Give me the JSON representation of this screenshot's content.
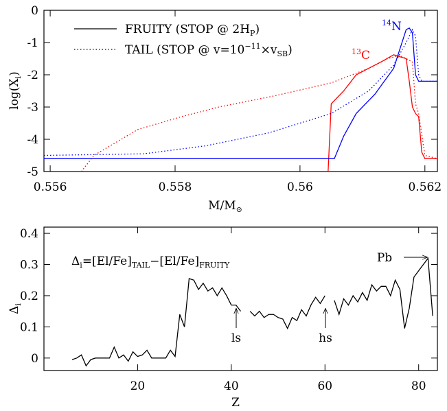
{
  "chart_data": [
    {
      "type": "line",
      "xlabel": [
        "M/M",
        "⊙"
      ],
      "ylabel": [
        "log(X",
        "i",
        ")"
      ],
      "xlim": [
        0.5559,
        0.5622
      ],
      "xticks": [
        0.556,
        0.558,
        0.56,
        0.562
      ],
      "ylim": [
        -5,
        0
      ],
      "yticks": [
        -5,
        -4,
        -3,
        -2,
        -1,
        0
      ],
      "legend": [
        {
          "text": [
            "FRUITY (STOP @ 2H",
            "P",
            ")"
          ],
          "style": "solid"
        },
        {
          "text": [
            "TAIL (STOP @ v=10",
            "−11",
            "×v",
            "SB",
            ")"
          ],
          "style": "dotted"
        }
      ],
      "labels": [
        {
          "text": [
            "13",
            "C"
          ],
          "color": "#ff0000"
        },
        {
          "text": [
            "14",
            "N"
          ],
          "color": "#0000ff"
        }
      ],
      "series": [
        {
          "color": "#ff0000",
          "style": "dotted",
          "x": [
            0.5565,
            0.5567,
            0.5574,
            0.5581,
            0.5587,
            0.5596,
            0.5605,
            0.5611,
            0.5614,
            0.5616,
            0.5618,
            0.56185,
            0.5619,
            0.562,
            0.5622
          ],
          "values": [
            -5,
            -4.5,
            -3.7,
            -3.3,
            -3.0,
            -2.65,
            -2.25,
            -1.8,
            -1.5,
            -1.4,
            -1.6,
            -2.9,
            -3.2,
            -4.5,
            -4.6
          ]
        },
        {
          "color": "#ff0000",
          "style": "solid",
          "x": [
            0.56045,
            0.5605,
            0.5607,
            0.5609,
            0.5613,
            0.5615,
            0.5617,
            0.56175,
            0.5618,
            0.56185,
            0.5619,
            0.56195,
            0.562,
            0.5622
          ],
          "values": [
            -5,
            -2.9,
            -2.5,
            -2.0,
            -1.6,
            -1.38,
            -1.5,
            -2.2,
            -3.0,
            -3.2,
            -3.3,
            -4.4,
            -4.6,
            -4.6
          ]
        },
        {
          "color": "#0000ff",
          "style": "solid",
          "x": [
            0.5559,
            0.56055,
            0.5607,
            0.5609,
            0.5612,
            0.5615,
            0.5617,
            0.56175,
            0.5618,
            0.56185,
            0.5619,
            0.5622
          ],
          "values": [
            -4.6,
            -4.6,
            -3.9,
            -3.2,
            -2.6,
            -1.8,
            -0.6,
            -0.55,
            -0.7,
            -2.0,
            -2.2,
            -2.2
          ]
        },
        {
          "color": "#0000ff",
          "style": "dotted",
          "x": [
            0.5559,
            0.5575,
            0.5585,
            0.5595,
            0.5605,
            0.5611,
            0.5615,
            0.5617,
            0.5618,
            0.56185,
            0.5619,
            0.56195,
            0.5622
          ],
          "values": [
            -4.5,
            -4.45,
            -4.2,
            -3.8,
            -3.2,
            -2.5,
            -1.7,
            -1.0,
            -0.6,
            -0.8,
            -2.0,
            -2.2,
            -2.2
          ]
        }
      ]
    },
    {
      "type": "line",
      "xlabel": "Z",
      "ylabel": [
        "Δ",
        "i"
      ],
      "annotation": [
        "Δ",
        "i",
        "=[El/Fe]",
        "TAIL",
        "−[El/Fe]",
        "FRUITY"
      ],
      "markers": [
        "ls",
        "hs",
        "Pb"
      ],
      "xlim": [
        0,
        84
      ],
      "xticks": [
        20,
        40,
        60,
        80
      ],
      "ylim": [
        -0.04,
        0.42
      ],
      "yticks": [
        0,
        0.1,
        0.2,
        0.3,
        0.4
      ],
      "series": [
        {
          "color": "#000000",
          "style": "solid",
          "x": [
            6,
            7,
            8,
            9,
            10,
            11,
            12,
            13,
            14,
            15,
            16,
            17,
            18,
            19,
            20,
            21,
            22,
            23,
            24,
            25,
            26,
            27,
            28,
            29,
            30,
            31,
            32,
            33,
            34,
            35,
            36,
            37,
            38,
            39,
            40,
            41,
            42,
            43,
            44,
            45,
            46,
            47,
            48,
            49,
            50,
            51,
            52,
            53,
            54,
            55,
            56,
            57,
            58,
            59,
            60,
            61,
            62,
            63,
            64,
            65,
            66,
            67,
            68,
            69,
            70,
            71,
            72,
            73,
            74,
            75,
            76,
            77,
            78,
            79,
            80,
            81,
            82,
            83
          ],
          "values": [
            -0.005,
            0.0,
            0.01,
            -0.025,
            -0.005,
            0.0,
            0.0,
            0.0,
            0.0,
            0.035,
            0.0,
            0.01,
            -0.01,
            0.02,
            0.005,
            0.01,
            0.025,
            0.0,
            0.0,
            0.0,
            0.0,
            0.025,
            0.005,
            0.14,
            0.1,
            0.255,
            0.25,
            0.22,
            0.24,
            0.215,
            0.225,
            0.2,
            0.225,
            0.2,
            0.17,
            0.17,
            0.15,
            null,
            0.15,
            0.135,
            0.15,
            0.13,
            0.14,
            0.14,
            0.13,
            0.125,
            0.095,
            0.13,
            0.12,
            0.155,
            0.135,
            0.17,
            0.195,
            0.175,
            0.2,
            null,
            0.185,
            0.14,
            0.19,
            0.17,
            0.2,
            0.18,
            0.21,
            0.185,
            0.235,
            0.215,
            0.23,
            0.23,
            0.2,
            0.25,
            0.22,
            0.095,
            0.16,
            0.26,
            0.28,
            0.3,
            0.32,
            0.135
          ]
        }
      ]
    }
  ]
}
